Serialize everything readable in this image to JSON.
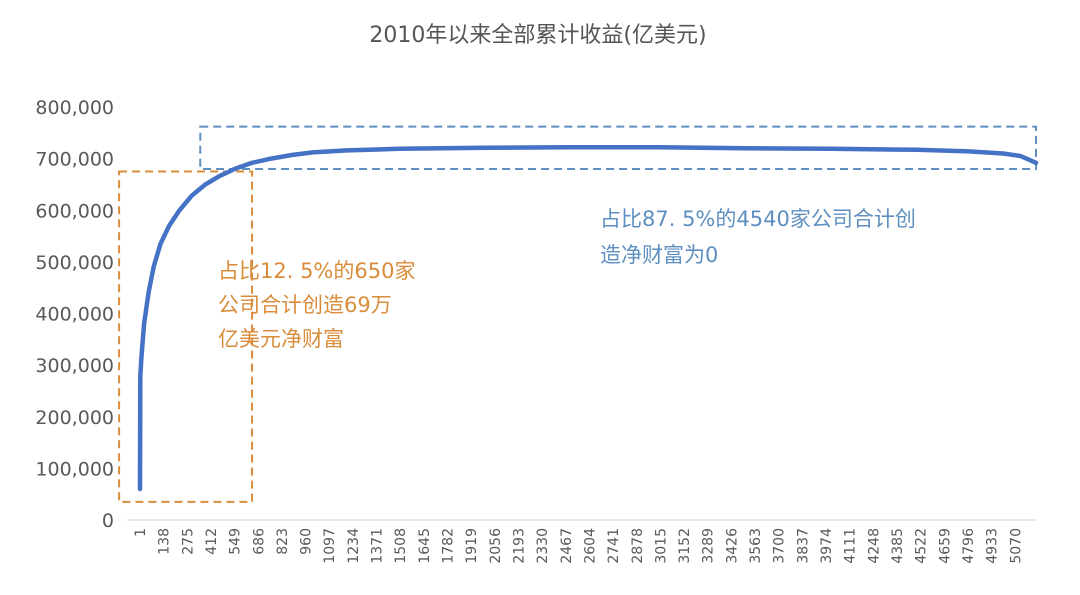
{
  "chart_data": {
    "type": "line",
    "title": "2010年以来全部累计收益(亿美元)",
    "y_ticks": [
      "0",
      "100,000",
      "200,000",
      "300,000",
      "400,000",
      "500,000",
      "600,000",
      "700,000",
      "800,000"
    ],
    "ylim": [
      0,
      800000
    ],
    "x_ticks": [
      "1",
      "138",
      "275",
      "412",
      "549",
      "686",
      "823",
      "960",
      "1097",
      "1234",
      "1371",
      "1508",
      "1645",
      "1782",
      "1919",
      "2056",
      "2193",
      "2330",
      "2467",
      "2604",
      "2741",
      "2878",
      "3015",
      "3152",
      "3289",
      "3426",
      "3563",
      "3700",
      "3837",
      "3974",
      "4111",
      "4248",
      "4385",
      "4522",
      "4659",
      "4796",
      "4933",
      "5070"
    ],
    "xlim": [
      1,
      5190
    ],
    "grid": false,
    "series": [
      {
        "color": "#4472c4",
        "points": [
          [
            1,
            60000
          ],
          [
            3,
            280000
          ],
          [
            10,
            320000
          ],
          [
            25,
            380000
          ],
          [
            50,
            440000
          ],
          [
            80,
            490000
          ],
          [
            120,
            535000
          ],
          [
            170,
            570000
          ],
          [
            230,
            600000
          ],
          [
            300,
            628000
          ],
          [
            380,
            650000
          ],
          [
            460,
            666000
          ],
          [
            550,
            680000
          ],
          [
            650,
            692000
          ],
          [
            760,
            700000
          ],
          [
            880,
            707000
          ],
          [
            1000,
            712000
          ],
          [
            1200,
            716000
          ],
          [
            1500,
            719000
          ],
          [
            2000,
            721000
          ],
          [
            2500,
            722000
          ],
          [
            3000,
            722000
          ],
          [
            3500,
            720000
          ],
          [
            4000,
            719000
          ],
          [
            4500,
            717000
          ],
          [
            4800,
            714000
          ],
          [
            5000,
            710000
          ],
          [
            5100,
            705000
          ],
          [
            5190,
            692000
          ]
        ]
      }
    ],
    "annotations": [
      {
        "color": "#d98c3a",
        "x_range": [
          -120,
          650
        ],
        "y_range": [
          35000,
          675000
        ],
        "text_lines": [
          "占比12. 5%的650家",
          "公司合计创造69万",
          "亿美元净财富"
        ]
      },
      {
        "color": "#5f8fc0",
        "x_range": [
          350,
          5190
        ],
        "y_range": [
          680000,
          762000
        ],
        "text_lines": [
          "占比87. 5%的4540家公司合计创",
          "造净财富为0"
        ]
      }
    ]
  }
}
